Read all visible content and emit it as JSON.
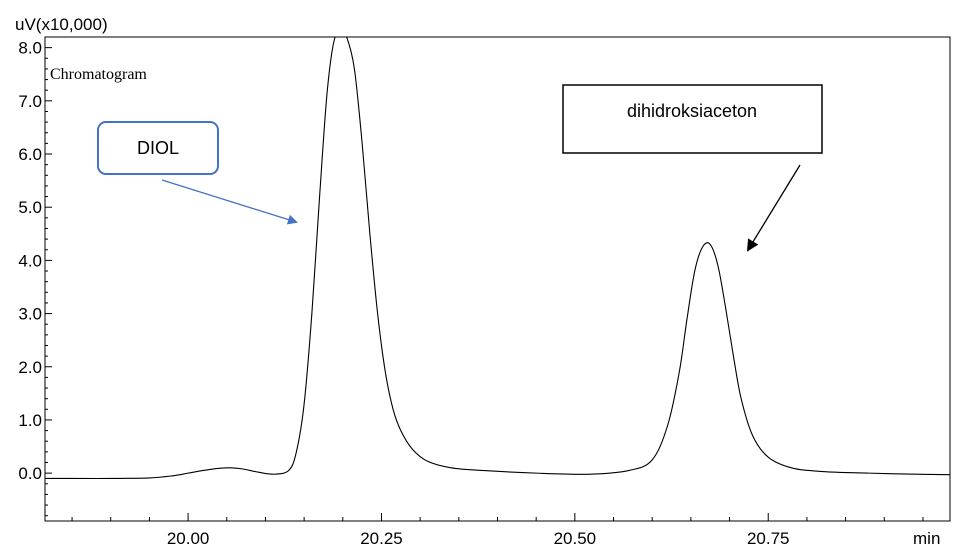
{
  "chart_data": {
    "type": "line",
    "title": "Chromatogram",
    "ylabel": "uV(x10,000)",
    "xlabel": "min",
    "xlim": [
      19.815,
      20.985
    ],
    "ylim": [
      -0.9,
      8.2
    ],
    "x_ticks": [
      20.0,
      20.25,
      20.5,
      20.75
    ],
    "x_tick_labels": [
      "20.00",
      "20.25",
      "20.50",
      "20.75"
    ],
    "y_ticks": [
      0,
      1,
      2,
      3,
      4,
      5,
      6,
      7,
      8
    ],
    "y_tick_labels": [
      "0.0",
      "1.0",
      "2.0",
      "3.0",
      "4.0",
      "5.0",
      "6.0",
      "7.0",
      "8.0"
    ],
    "series": [
      {
        "color": "#000000",
        "x": [
          19.815,
          19.85,
          19.9,
          19.95,
          19.98,
          20.0,
          20.02,
          20.04,
          20.055,
          20.07,
          20.09,
          20.11,
          20.13,
          20.14,
          20.15,
          20.16,
          20.17,
          20.18,
          20.19,
          20.2,
          20.205,
          20.215,
          20.225,
          20.235,
          20.245,
          20.255,
          20.265,
          20.275,
          20.29,
          20.31,
          20.34,
          20.38,
          20.45,
          20.52,
          20.57,
          20.6,
          20.62,
          20.635,
          20.645,
          20.655,
          20.665,
          20.675,
          20.685,
          20.695,
          20.705,
          20.715,
          20.73,
          20.75,
          20.78,
          20.82,
          20.88,
          20.94,
          20.985
        ],
        "y": [
          -0.1,
          -0.1,
          -0.1,
          -0.09,
          -0.05,
          0.0,
          0.05,
          0.09,
          0.1,
          0.08,
          0.02,
          -0.02,
          0.05,
          0.4,
          1.3,
          3.0,
          5.2,
          7.2,
          8.2,
          8.2,
          8.2,
          7.6,
          6.2,
          4.5,
          3.0,
          1.9,
          1.2,
          0.8,
          0.45,
          0.22,
          0.1,
          0.05,
          0.0,
          -0.02,
          0.05,
          0.25,
          0.9,
          1.9,
          2.9,
          3.8,
          4.25,
          4.3,
          3.9,
          3.1,
          2.2,
          1.4,
          0.7,
          0.3,
          0.1,
          0.03,
          0.0,
          -0.02,
          -0.03
        ]
      }
    ],
    "annotations": [
      {
        "label": "DIOL",
        "box_style": "rounded-blue",
        "arrow_color": "#4472c4"
      },
      {
        "label": "dihidroksiaceton",
        "box_style": "square-black",
        "arrow_color": "#000000"
      }
    ]
  }
}
